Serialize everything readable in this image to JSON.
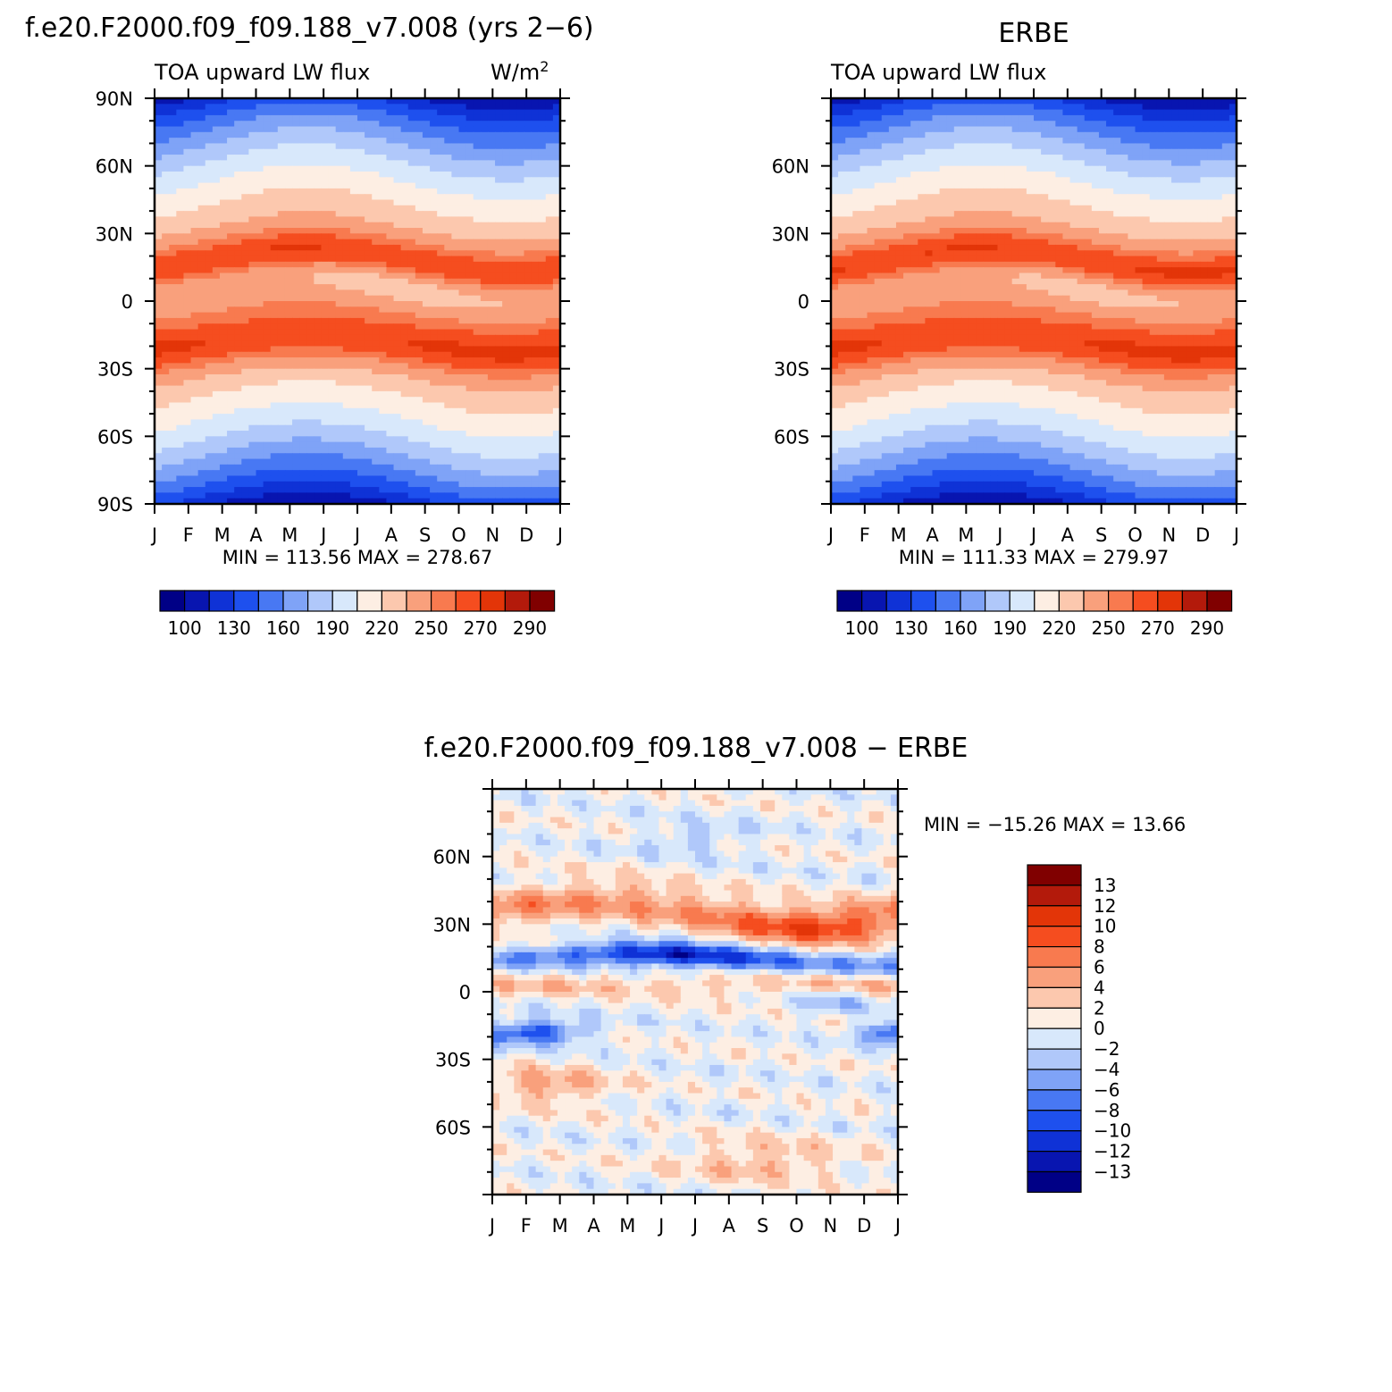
{
  "colors": {
    "scale": [
      "#000086",
      "#0815b0",
      "#0f32d6",
      "#1e50ee",
      "#4878f3",
      "#7fa3f7",
      "#b0c8fa",
      "#d8e8fb",
      "#fdeee3",
      "#fcc8ae",
      "#f9a07c",
      "#f87a4f",
      "#f54d1f",
      "#e33508",
      "#b31a0b",
      "#800000"
    ]
  },
  "chart_data": [
    {
      "type": "heatmap",
      "title": "f.e20.F2000.f09_f09.188_v7.008 (yrs 2−6)",
      "subtitle_left": "TOA upward LW flux",
      "units": "W/m",
      "units_sup": "2",
      "x_ticks": [
        "J",
        "F",
        "M",
        "A",
        "M",
        "J",
        "J",
        "A",
        "S",
        "O",
        "N",
        "D",
        "J"
      ],
      "y_ticks": [
        "90N",
        "60N",
        "30N",
        "0",
        "30S",
        "60S",
        "90S"
      ],
      "ylim": [
        -90,
        90
      ],
      "stats": "MIN =  113.56  MAX =  278.67",
      "colorbar_labels": [
        "100",
        "130",
        "160",
        "190",
        "220",
        "250",
        "270",
        "290"
      ]
    },
    {
      "type": "heatmap",
      "title": "ERBE",
      "subtitle_left": "TOA upward LW flux",
      "x_ticks": [
        "J",
        "F",
        "M",
        "A",
        "M",
        "J",
        "J",
        "A",
        "S",
        "O",
        "N",
        "D",
        "J"
      ],
      "y_ticks": [
        "60N",
        "30N",
        "0",
        "30S",
        "60S"
      ],
      "ylim": [
        -90,
        90
      ],
      "stats": "MIN =  111.33  MAX =  279.97",
      "colorbar_labels": [
        "100",
        "130",
        "160",
        "190",
        "220",
        "250",
        "270",
        "290"
      ]
    },
    {
      "type": "heatmap",
      "title": "f.e20.F2000.f09_f09.188_v7.008 − ERBE",
      "x_ticks": [
        "J",
        "F",
        "M",
        "A",
        "M",
        "J",
        "J",
        "A",
        "S",
        "O",
        "N",
        "D",
        "J"
      ],
      "y_ticks": [
        "60N",
        "30N",
        "0",
        "30S",
        "60S"
      ],
      "ylim": [
        -90,
        90
      ],
      "stats": "MIN = −15.26 MAX =   13.66",
      "colorbar_labels": [
        "13",
        "12",
        "10",
        "8",
        "6",
        "4",
        "2",
        "0",
        "−2",
        "−4",
        "−6",
        "−8",
        "−10",
        "−12",
        "−13"
      ]
    }
  ]
}
